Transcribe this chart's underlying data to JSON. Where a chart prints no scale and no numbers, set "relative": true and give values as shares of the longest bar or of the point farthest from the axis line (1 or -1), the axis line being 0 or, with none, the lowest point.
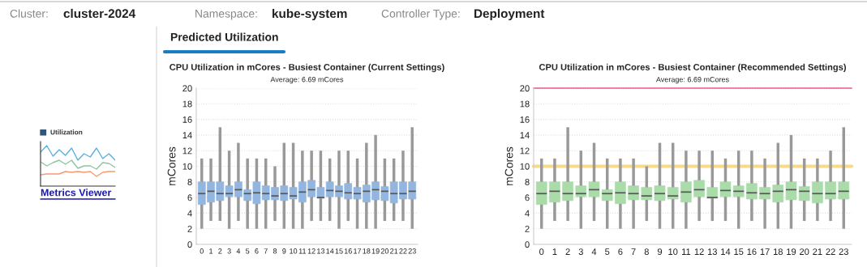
{
  "chart_data": [
    {
      "type": "other",
      "annotations": [
        "Cluster:",
        "cluster-2024",
        "Namespace:",
        "kube-system",
        "Controller Type:",
        "Deployment",
        "Predicted Utilization",
        "Metrics Viewer"
      ]
    },
    {
      "type": "line",
      "title": "Utilization",
      "relative": true,
      "categories": [
        null,
        null,
        null,
        null,
        null,
        null,
        null,
        null,
        null,
        null,
        null,
        null,
        null
      ],
      "series": [
        {
          "color": "#5ab0e0",
          "values": [
            0.84,
            1,
            0.74,
            0.9,
            0.76,
            0.94,
            0.64,
            0.8,
            0.72,
            0.94,
            0.68,
            0.8,
            0.64
          ]
        },
        {
          "color": "#8fc49f",
          "values": [
            0.6,
            0.5,
            0.58,
            0.64,
            0.54,
            0.64,
            0.44,
            0.5,
            0.5,
            0.42,
            0.58,
            0.56,
            0.46
          ]
        },
        {
          "color": "#f59a70",
          "values": [
            0.28,
            0.3,
            0.3,
            0.3,
            0.36,
            0.34,
            0.36,
            0.34,
            0.36,
            0.24,
            0.34,
            0.36,
            0.36
          ]
        }
      ]
    },
    {
      "type": "box",
      "title": "CPU Utilization in mCores - Busiest Container (Current Settings)",
      "subtitle": "Average: 6.69 mCores",
      "ylabel": "mCores",
      "categories": [
        "0",
        "1",
        "2",
        "3",
        "4",
        "5",
        "6",
        "7",
        "8",
        "9",
        "10",
        "11",
        "12",
        "13",
        "14",
        "15",
        "16",
        "17",
        "18",
        "19",
        "20",
        "21",
        "22",
        "23"
      ],
      "ylim": [
        0,
        20
      ],
      "yticks": [
        0,
        2,
        4,
        6,
        8,
        10,
        12,
        14,
        16,
        18,
        20
      ],
      "grid": "y",
      "series": [
        {
          "color": "#92b6e0",
          "boxes": [
            {
              "low": 2,
              "q1": 5.1,
              "median": 6.5,
              "q3": 8,
              "high": 11
            },
            {
              "low": 3,
              "q1": 5.4,
              "median": 6.8,
              "q3": 8,
              "high": 11
            },
            {
              "low": 3,
              "q1": 5.6,
              "median": 6.5,
              "q3": 8,
              "high": 15
            },
            {
              "low": 2,
              "q1": 6.1,
              "median": 6.5,
              "q3": 7.5,
              "high": 12
            },
            {
              "low": 3,
              "q1": 6.1,
              "median": 7,
              "q3": 8,
              "high": 13
            },
            {
              "low": 2,
              "q1": 5.6,
              "median": 6.5,
              "q3": 7,
              "high": 11
            },
            {
              "low": 2,
              "q1": 5.2,
              "median": 6.6,
              "q3": 8,
              "high": 11
            },
            {
              "low": 2,
              "q1": 5.7,
              "median": 6.5,
              "q3": 7.5,
              "high": 11
            },
            {
              "low": 3,
              "q1": 5.7,
              "median": 6.2,
              "q3": 7.3,
              "high": 10
            },
            {
              "low": 2,
              "q1": 5.6,
              "median": 6.5,
              "q3": 7.5,
              "high": 13
            },
            {
              "low": 2,
              "q1": 5.8,
              "median": 6.2,
              "q3": 7.3,
              "high": 13
            },
            {
              "low": 2,
              "q1": 5.4,
              "median": 6.7,
              "q3": 8,
              "high": 12
            },
            {
              "low": 3,
              "q1": 6.1,
              "median": 7,
              "q3": 8.2,
              "high": 12
            },
            {
              "low": 3,
              "q1": 5.9,
              "median": 6,
              "q3": 7.3,
              "high": 12
            },
            {
              "low": 3,
              "q1": 6.1,
              "median": 6.9,
              "q3": 8,
              "high": 11
            },
            {
              "low": 2,
              "q1": 6.1,
              "median": 6.8,
              "q3": 7.5,
              "high": 12
            },
            {
              "low": 3,
              "q1": 5.8,
              "median": 6.6,
              "q3": 7.8,
              "high": 12
            },
            {
              "low": 2,
              "q1": 5.8,
              "median": 6.5,
              "q3": 7.3,
              "high": 11
            },
            {
              "low": 2,
              "q1": 5.4,
              "median": 6.8,
              "q3": 7.6,
              "high": 13
            },
            {
              "low": 2,
              "q1": 5.7,
              "median": 7,
              "q3": 8,
              "high": 14
            },
            {
              "low": 3,
              "q1": 5.6,
              "median": 6.8,
              "q3": 7.4,
              "high": 11
            },
            {
              "low": 3,
              "q1": 5.3,
              "median": 6.5,
              "q3": 8,
              "high": 11
            },
            {
              "low": 3,
              "q1": 5.8,
              "median": 6.5,
              "q3": 8,
              "high": 12
            },
            {
              "low": 2,
              "q1": 5.8,
              "median": 6.8,
              "q3": 8,
              "high": 15
            }
          ]
        }
      ]
    },
    {
      "type": "box",
      "title": "CPU Utilization in mCores - Busiest Container (Recommended Settings)",
      "subtitle": "Average: 6.69 mCores",
      "ylabel": "mCores",
      "categories": [
        "0",
        "1",
        "2",
        "3",
        "4",
        "5",
        "6",
        "7",
        "8",
        "9",
        "10",
        "11",
        "12",
        "13",
        "14",
        "15",
        "16",
        "17",
        "18",
        "19",
        "20",
        "21",
        "22",
        "23"
      ],
      "ylim": [
        0,
        20
      ],
      "yticks": [
        0,
        2,
        4,
        6,
        8,
        10,
        12,
        14,
        16,
        18,
        20
      ],
      "grid": "y",
      "ref_lines": [
        {
          "axis": "y",
          "value": 20,
          "color": "#e0507a"
        },
        {
          "axis": "y",
          "value": 10,
          "color": "#f7d98a"
        }
      ],
      "series": [
        {
          "color": "#a9dca9",
          "boxes": [
            {
              "low": 2,
              "q1": 5.1,
              "median": 6.5,
              "q3": 8,
              "high": 11
            },
            {
              "low": 3,
              "q1": 5.4,
              "median": 6.8,
              "q3": 8,
              "high": 11
            },
            {
              "low": 3,
              "q1": 5.6,
              "median": 6.5,
              "q3": 8,
              "high": 15
            },
            {
              "low": 2,
              "q1": 6.1,
              "median": 6.5,
              "q3": 7.5,
              "high": 12
            },
            {
              "low": 3,
              "q1": 6.1,
              "median": 7,
              "q3": 8,
              "high": 13
            },
            {
              "low": 2,
              "q1": 5.6,
              "median": 6.5,
              "q3": 7,
              "high": 11
            },
            {
              "low": 2,
              "q1": 5.2,
              "median": 6.6,
              "q3": 8,
              "high": 11
            },
            {
              "low": 2,
              "q1": 5.7,
              "median": 6.5,
              "q3": 7.5,
              "high": 11
            },
            {
              "low": 3,
              "q1": 5.7,
              "median": 6.2,
              "q3": 7.3,
              "high": 10
            },
            {
              "low": 2,
              "q1": 5.6,
              "median": 6.5,
              "q3": 7.5,
              "high": 13
            },
            {
              "low": 2,
              "q1": 5.8,
              "median": 6.2,
              "q3": 7.3,
              "high": 13
            },
            {
              "low": 2,
              "q1": 5.4,
              "median": 6.7,
              "q3": 8,
              "high": 12
            },
            {
              "low": 3,
              "q1": 6.1,
              "median": 7,
              "q3": 8.2,
              "high": 12
            },
            {
              "low": 3,
              "q1": 5.9,
              "median": 6,
              "q3": 7.3,
              "high": 12
            },
            {
              "low": 3,
              "q1": 6.1,
              "median": 6.9,
              "q3": 8,
              "high": 11
            },
            {
              "low": 2,
              "q1": 6.1,
              "median": 6.8,
              "q3": 7.5,
              "high": 12
            },
            {
              "low": 3,
              "q1": 5.8,
              "median": 6.6,
              "q3": 7.8,
              "high": 12
            },
            {
              "low": 2,
              "q1": 5.8,
              "median": 6.5,
              "q3": 7.3,
              "high": 11
            },
            {
              "low": 2,
              "q1": 5.4,
              "median": 6.8,
              "q3": 7.6,
              "high": 13
            },
            {
              "low": 2,
              "q1": 5.7,
              "median": 7,
              "q3": 8,
              "high": 14
            },
            {
              "low": 3,
              "q1": 5.6,
              "median": 6.8,
              "q3": 7.4,
              "high": 11
            },
            {
              "low": 3,
              "q1": 5.3,
              "median": 6.5,
              "q3": 8,
              "high": 11
            },
            {
              "low": 3,
              "q1": 5.8,
              "median": 6.5,
              "q3": 8,
              "high": 12
            },
            {
              "low": 2,
              "q1": 5.8,
              "median": 6.8,
              "q3": 8,
              "high": 15
            }
          ]
        }
      ]
    }
  ]
}
